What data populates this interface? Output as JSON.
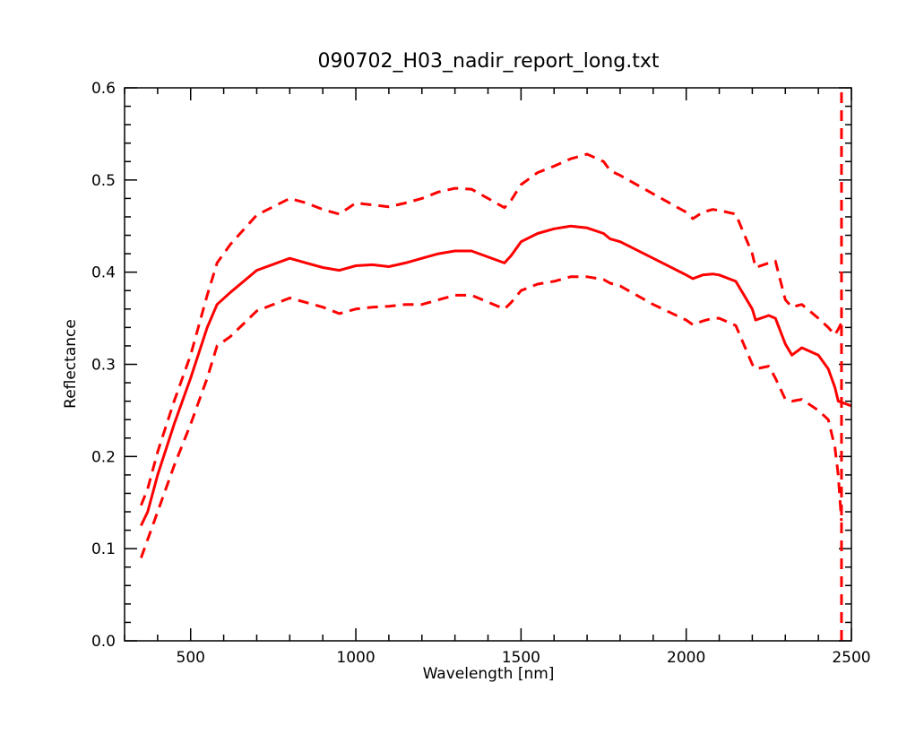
{
  "chart_data": {
    "type": "line",
    "title": "090702_H03_nadir_report_long.txt",
    "xlabel": "Wavelength [nm]",
    "ylabel": "Reflectance",
    "xlim": [
      300,
      2500
    ],
    "ylim": [
      0.0,
      0.6
    ],
    "x_ticks": [
      500,
      1000,
      1500,
      2000,
      2500
    ],
    "x_tick_labels": [
      "500",
      "1000",
      "1500",
      "2000",
      "2500"
    ],
    "y_ticks": [
      0.0,
      0.1,
      0.2,
      0.3,
      0.4,
      0.5,
      0.6
    ],
    "y_tick_labels": [
      "0.0",
      "0.1",
      "0.2",
      "0.3",
      "0.4",
      "0.5",
      "0.6"
    ],
    "grid": false,
    "legend": "none",
    "series": [
      {
        "style": "solid",
        "color": "#ff0000",
        "x": [
          350,
          370,
          400,
          450,
          500,
          550,
          580,
          620,
          700,
          800,
          850,
          900,
          950,
          1000,
          1050,
          1100,
          1150,
          1200,
          1250,
          1300,
          1350,
          1450,
          1470,
          1500,
          1550,
          1600,
          1650,
          1700,
          1750,
          1770,
          1800,
          1900,
          2000,
          2020,
          2050,
          2080,
          2100,
          2150,
          2200,
          2210,
          2250,
          2270,
          2300,
          2320,
          2350,
          2400,
          2430,
          2450,
          2460,
          2500
        ],
        "y": [
          0.125,
          0.14,
          0.18,
          0.235,
          0.285,
          0.34,
          0.365,
          0.378,
          0.402,
          0.415,
          0.41,
          0.405,
          0.402,
          0.407,
          0.408,
          0.406,
          0.41,
          0.415,
          0.42,
          0.423,
          0.423,
          0.41,
          0.418,
          0.433,
          0.442,
          0.447,
          0.45,
          0.448,
          0.442,
          0.436,
          0.433,
          0.415,
          0.397,
          0.393,
          0.397,
          0.398,
          0.397,
          0.39,
          0.36,
          0.348,
          0.353,
          0.35,
          0.322,
          0.31,
          0.318,
          0.31,
          0.295,
          0.275,
          0.26,
          0.255
        ]
      },
      {
        "style": "dashed",
        "color": "#ff0000",
        "x": [
          350,
          370,
          400,
          450,
          500,
          550,
          580,
          620,
          700,
          800,
          850,
          900,
          950,
          1000,
          1050,
          1100,
          1150,
          1200,
          1250,
          1300,
          1350,
          1450,
          1470,
          1500,
          1550,
          1600,
          1650,
          1700,
          1750,
          1770,
          1800,
          1900,
          2000,
          2020,
          2050,
          2080,
          2100,
          2150,
          2200,
          2210,
          2250,
          2270,
          2300,
          2320,
          2350,
          2400,
          2430,
          2450,
          2460,
          2470
        ],
        "y": [
          0.147,
          0.165,
          0.205,
          0.26,
          0.31,
          0.375,
          0.41,
          0.43,
          0.462,
          0.48,
          0.475,
          0.468,
          0.463,
          0.475,
          0.473,
          0.471,
          0.475,
          0.48,
          0.487,
          0.491,
          0.49,
          0.47,
          0.478,
          0.495,
          0.508,
          0.515,
          0.523,
          0.528,
          0.52,
          0.51,
          0.505,
          0.485,
          0.465,
          0.458,
          0.465,
          0.468,
          0.467,
          0.463,
          0.42,
          0.405,
          0.41,
          0.412,
          0.37,
          0.362,
          0.365,
          0.35,
          0.34,
          0.332,
          0.338,
          0.345
        ]
      },
      {
        "style": "dashed",
        "color": "#ff0000",
        "x": [
          350,
          370,
          400,
          450,
          500,
          550,
          580,
          620,
          700,
          800,
          850,
          900,
          950,
          1000,
          1050,
          1100,
          1150,
          1200,
          1250,
          1300,
          1350,
          1450,
          1470,
          1500,
          1550,
          1600,
          1650,
          1700,
          1750,
          1770,
          1800,
          1900,
          2000,
          2020,
          2050,
          2080,
          2100,
          2150,
          2200,
          2210,
          2250,
          2270,
          2300,
          2320,
          2350,
          2400,
          2430,
          2450,
          2460,
          2470
        ],
        "y": [
          0.09,
          0.11,
          0.14,
          0.19,
          0.235,
          0.285,
          0.32,
          0.33,
          0.358,
          0.372,
          0.367,
          0.362,
          0.355,
          0.36,
          0.362,
          0.363,
          0.365,
          0.365,
          0.37,
          0.375,
          0.375,
          0.36,
          0.367,
          0.38,
          0.387,
          0.39,
          0.395,
          0.395,
          0.392,
          0.388,
          0.385,
          0.365,
          0.348,
          0.343,
          0.347,
          0.35,
          0.35,
          0.342,
          0.3,
          0.295,
          0.298,
          0.285,
          0.262,
          0.26,
          0.262,
          0.25,
          0.24,
          0.21,
          0.18,
          0.13
        ]
      }
    ],
    "spikes": [
      {
        "style": "dashed",
        "color": "#ff0000",
        "x": 2470,
        "y_from": 0.0,
        "y_to": 0.6
      }
    ]
  }
}
